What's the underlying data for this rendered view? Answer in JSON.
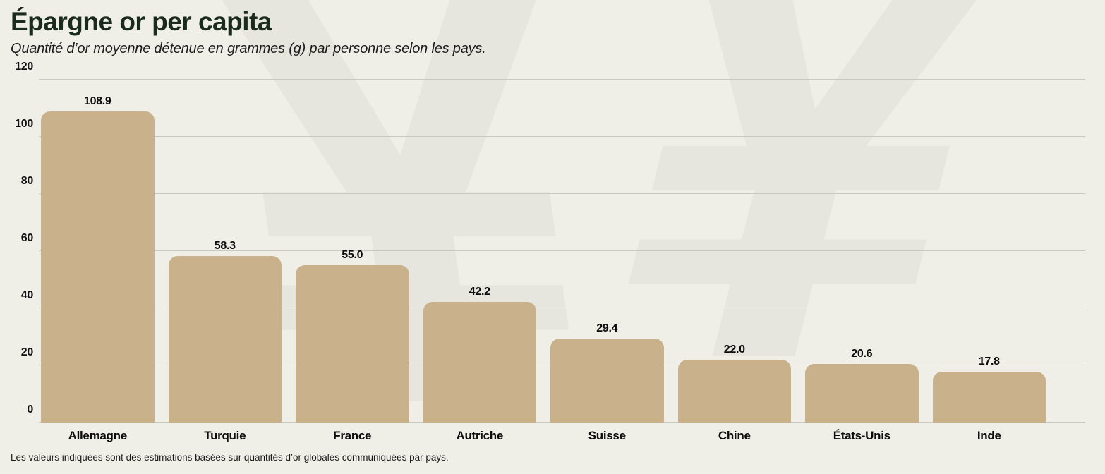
{
  "header": {
    "title": "Épargne or per capita",
    "subtitle": "Quantité d’or moyenne détenue en grammes (g) par personne selon les pays."
  },
  "footer": {
    "note": "Les valeurs indiquées sont des estimations basées sur quantités d’or globales communiquées par pays."
  },
  "watermark": {
    "symbol": "¥"
  },
  "colors": {
    "background": "#efefe8",
    "watermark": "#e6e6df",
    "bar": "#c9b28b",
    "gridline": "#c9c9c1",
    "title": "#1a2b1b",
    "text": "#0c0c0c"
  },
  "chart_data": {
    "type": "bar",
    "title": "Épargne or per capita",
    "subtitle": "Quantité d’or moyenne détenue en grammes (g) par personne selon les pays.",
    "categories": [
      "Allemagne",
      "Turquie",
      "France",
      "Autriche",
      "Suisse",
      "Chine",
      "États-Unis",
      "Inde"
    ],
    "values": [
      108.9,
      58.3,
      55.0,
      42.2,
      29.4,
      22.0,
      20.6,
      17.8
    ],
    "value_decimals": 1,
    "unit": "g",
    "xlabel": "",
    "ylabel": "",
    "ylim": [
      0,
      120
    ],
    "yticks": [
      0,
      20,
      40,
      60,
      80,
      100,
      120
    ],
    "grid": true,
    "legend": false,
    "bar_corner_radius": "rounded-top",
    "annotation": "Les valeurs indiquées sont des estimations basées sur quantités d’or globales communiquées par pays."
  }
}
